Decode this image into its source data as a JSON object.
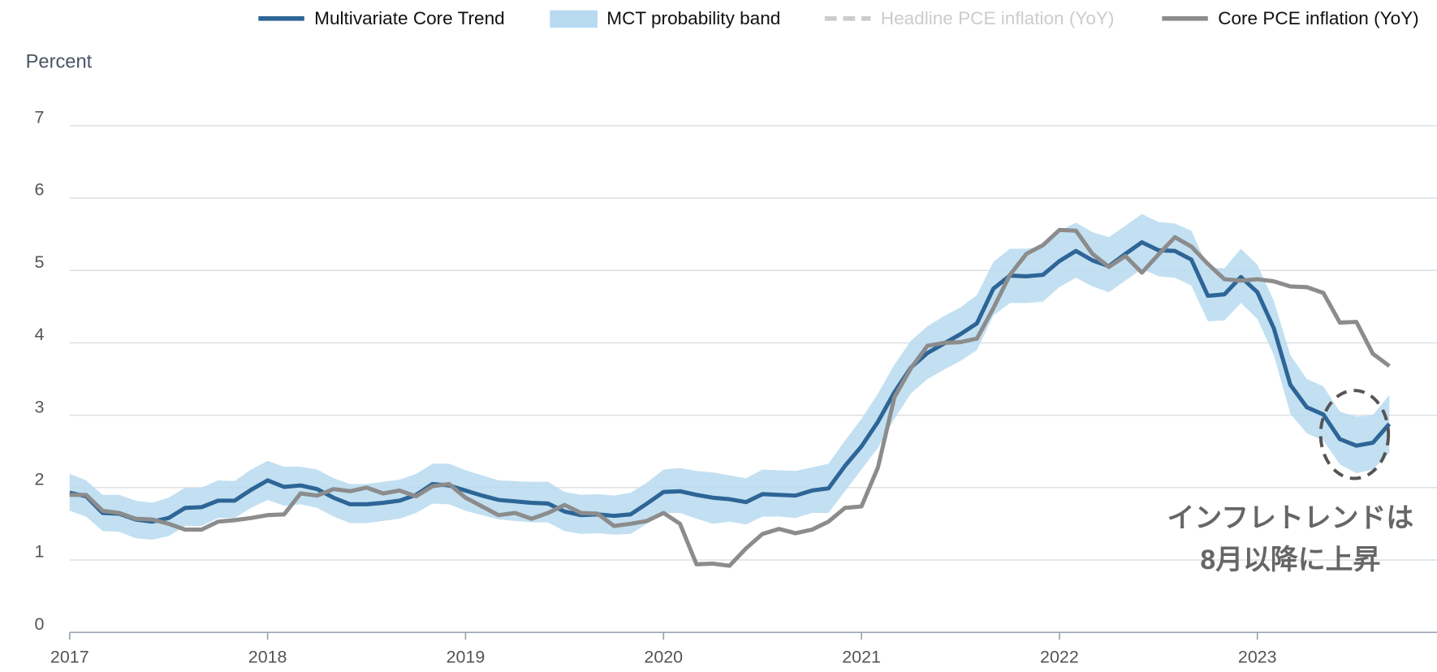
{
  "chart_data": {
    "type": "line",
    "y_label": "Percent",
    "categories": [
      "2017",
      null,
      null,
      null,
      null,
      null,
      null,
      null,
      null,
      null,
      null,
      null,
      "2018",
      null,
      null,
      null,
      null,
      null,
      null,
      null,
      null,
      null,
      null,
      null,
      "2019",
      null,
      null,
      null,
      null,
      null,
      null,
      null,
      null,
      null,
      null,
      null,
      "2020",
      null,
      null,
      null,
      null,
      null,
      null,
      null,
      null,
      null,
      null,
      null,
      "2021",
      null,
      null,
      null,
      null,
      null,
      null,
      null,
      null,
      null,
      null,
      null,
      "2022",
      null,
      null,
      null,
      null,
      null,
      null,
      null,
      null,
      null,
      null,
      null,
      "2023",
      null,
      null,
      null,
      null,
      null,
      null,
      null,
      null
    ],
    "ylim": [
      0,
      7
    ],
    "yticks": [
      0,
      1,
      2,
      3,
      4,
      5,
      6,
      7
    ],
    "grid": true,
    "legend": "top",
    "series": [
      {
        "name": "Multivariate Core Trend",
        "style": "line",
        "color": "#2e6597",
        "values": [
          1.93,
          1.88,
          1.65,
          1.64,
          1.56,
          1.53,
          1.58,
          1.72,
          1.73,
          1.82,
          1.82,
          1.97,
          2.1,
          2.01,
          2.03,
          1.98,
          1.86,
          1.77,
          1.77,
          1.79,
          1.82,
          1.9,
          2.05,
          2.03,
          1.96,
          1.89,
          1.83,
          1.81,
          1.79,
          1.78,
          1.67,
          1.62,
          1.63,
          1.61,
          1.63,
          1.78,
          1.94,
          1.95,
          1.9,
          1.86,
          1.84,
          1.8,
          1.91,
          1.9,
          1.89,
          1.96,
          1.99,
          2.3,
          2.57,
          2.91,
          3.32,
          3.66,
          3.86,
          3.99,
          4.12,
          4.27,
          4.75,
          4.93,
          4.92,
          4.94,
          5.13,
          5.27,
          5.14,
          5.06,
          5.23,
          5.39,
          5.28,
          5.27,
          5.15,
          4.65,
          4.67,
          4.91,
          4.7,
          4.2,
          3.42,
          3.11,
          3.01,
          2.67,
          2.58,
          2.62,
          2.88
        ]
      },
      {
        "name": "MCT probability band",
        "style": "band",
        "color": "#b7daf0",
        "upper": [
          2.19,
          2.1,
          1.9,
          1.9,
          1.82,
          1.79,
          1.86,
          2.0,
          2.0,
          2.1,
          2.09,
          2.25,
          2.37,
          2.29,
          2.29,
          2.25,
          2.13,
          2.05,
          2.05,
          2.08,
          2.11,
          2.19,
          2.33,
          2.33,
          2.24,
          2.17,
          2.1,
          2.09,
          2.08,
          2.08,
          1.94,
          1.9,
          1.91,
          1.89,
          1.93,
          2.07,
          2.25,
          2.27,
          2.23,
          2.21,
          2.17,
          2.13,
          2.25,
          2.24,
          2.23,
          2.28,
          2.33,
          2.65,
          2.95,
          3.3,
          3.7,
          4.03,
          4.23,
          4.37,
          4.49,
          4.66,
          5.12,
          5.3,
          5.3,
          5.34,
          5.55,
          5.66,
          5.53,
          5.46,
          5.62,
          5.78,
          5.67,
          5.65,
          5.55,
          5.04,
          5.03,
          5.3,
          5.08,
          4.58,
          3.83,
          3.5,
          3.4,
          3.05,
          2.98,
          3.0,
          3.28
        ],
        "lower": [
          1.68,
          1.6,
          1.4,
          1.39,
          1.3,
          1.28,
          1.33,
          1.47,
          1.47,
          1.58,
          1.58,
          1.72,
          1.83,
          1.75,
          1.77,
          1.72,
          1.6,
          1.51,
          1.51,
          1.54,
          1.57,
          1.65,
          1.78,
          1.77,
          1.68,
          1.62,
          1.56,
          1.54,
          1.52,
          1.52,
          1.4,
          1.36,
          1.37,
          1.35,
          1.36,
          1.5,
          1.65,
          1.65,
          1.57,
          1.5,
          1.53,
          1.49,
          1.6,
          1.6,
          1.58,
          1.65,
          1.65,
          1.95,
          2.25,
          2.55,
          2.95,
          3.3,
          3.5,
          3.63,
          3.75,
          3.9,
          4.38,
          4.55,
          4.55,
          4.57,
          4.77,
          4.9,
          4.78,
          4.7,
          4.86,
          5.02,
          4.92,
          4.9,
          4.79,
          4.3,
          4.31,
          4.55,
          4.33,
          3.83,
          3.02,
          2.75,
          2.65,
          2.32,
          2.2,
          2.25,
          2.48
        ]
      },
      {
        "name": "Headline PCE inflation (YoY)",
        "style": "dashed",
        "color": "#cccccc",
        "visible": false
      },
      {
        "name": "Core PCE inflation (YoY)",
        "style": "line",
        "color": "#8c8c8c",
        "values": [
          1.9,
          1.9,
          1.68,
          1.65,
          1.57,
          1.56,
          1.5,
          1.42,
          1.42,
          1.53,
          1.55,
          1.58,
          1.62,
          1.63,
          1.92,
          1.89,
          1.98,
          1.95,
          2.0,
          1.92,
          1.96,
          1.88,
          2.02,
          2.05,
          1.86,
          1.74,
          1.62,
          1.65,
          1.57,
          1.65,
          1.76,
          1.65,
          1.64,
          1.47,
          1.5,
          1.54,
          1.65,
          1.5,
          0.94,
          0.95,
          0.92,
          1.16,
          1.36,
          1.43,
          1.37,
          1.42,
          1.53,
          1.72,
          1.74,
          2.28,
          3.25,
          3.65,
          3.96,
          4.0,
          4.01,
          4.06,
          4.48,
          4.94,
          5.23,
          5.35,
          5.56,
          5.55,
          5.23,
          5.05,
          5.2,
          4.97,
          5.22,
          5.46,
          5.33,
          5.09,
          4.88,
          4.86,
          4.88,
          4.85,
          4.78,
          4.77,
          4.69,
          4.28,
          4.29,
          3.85,
          3.68
        ]
      }
    ],
    "annotation": [
      "インフレトレンドは",
      "8月以降に上昇"
    ]
  }
}
